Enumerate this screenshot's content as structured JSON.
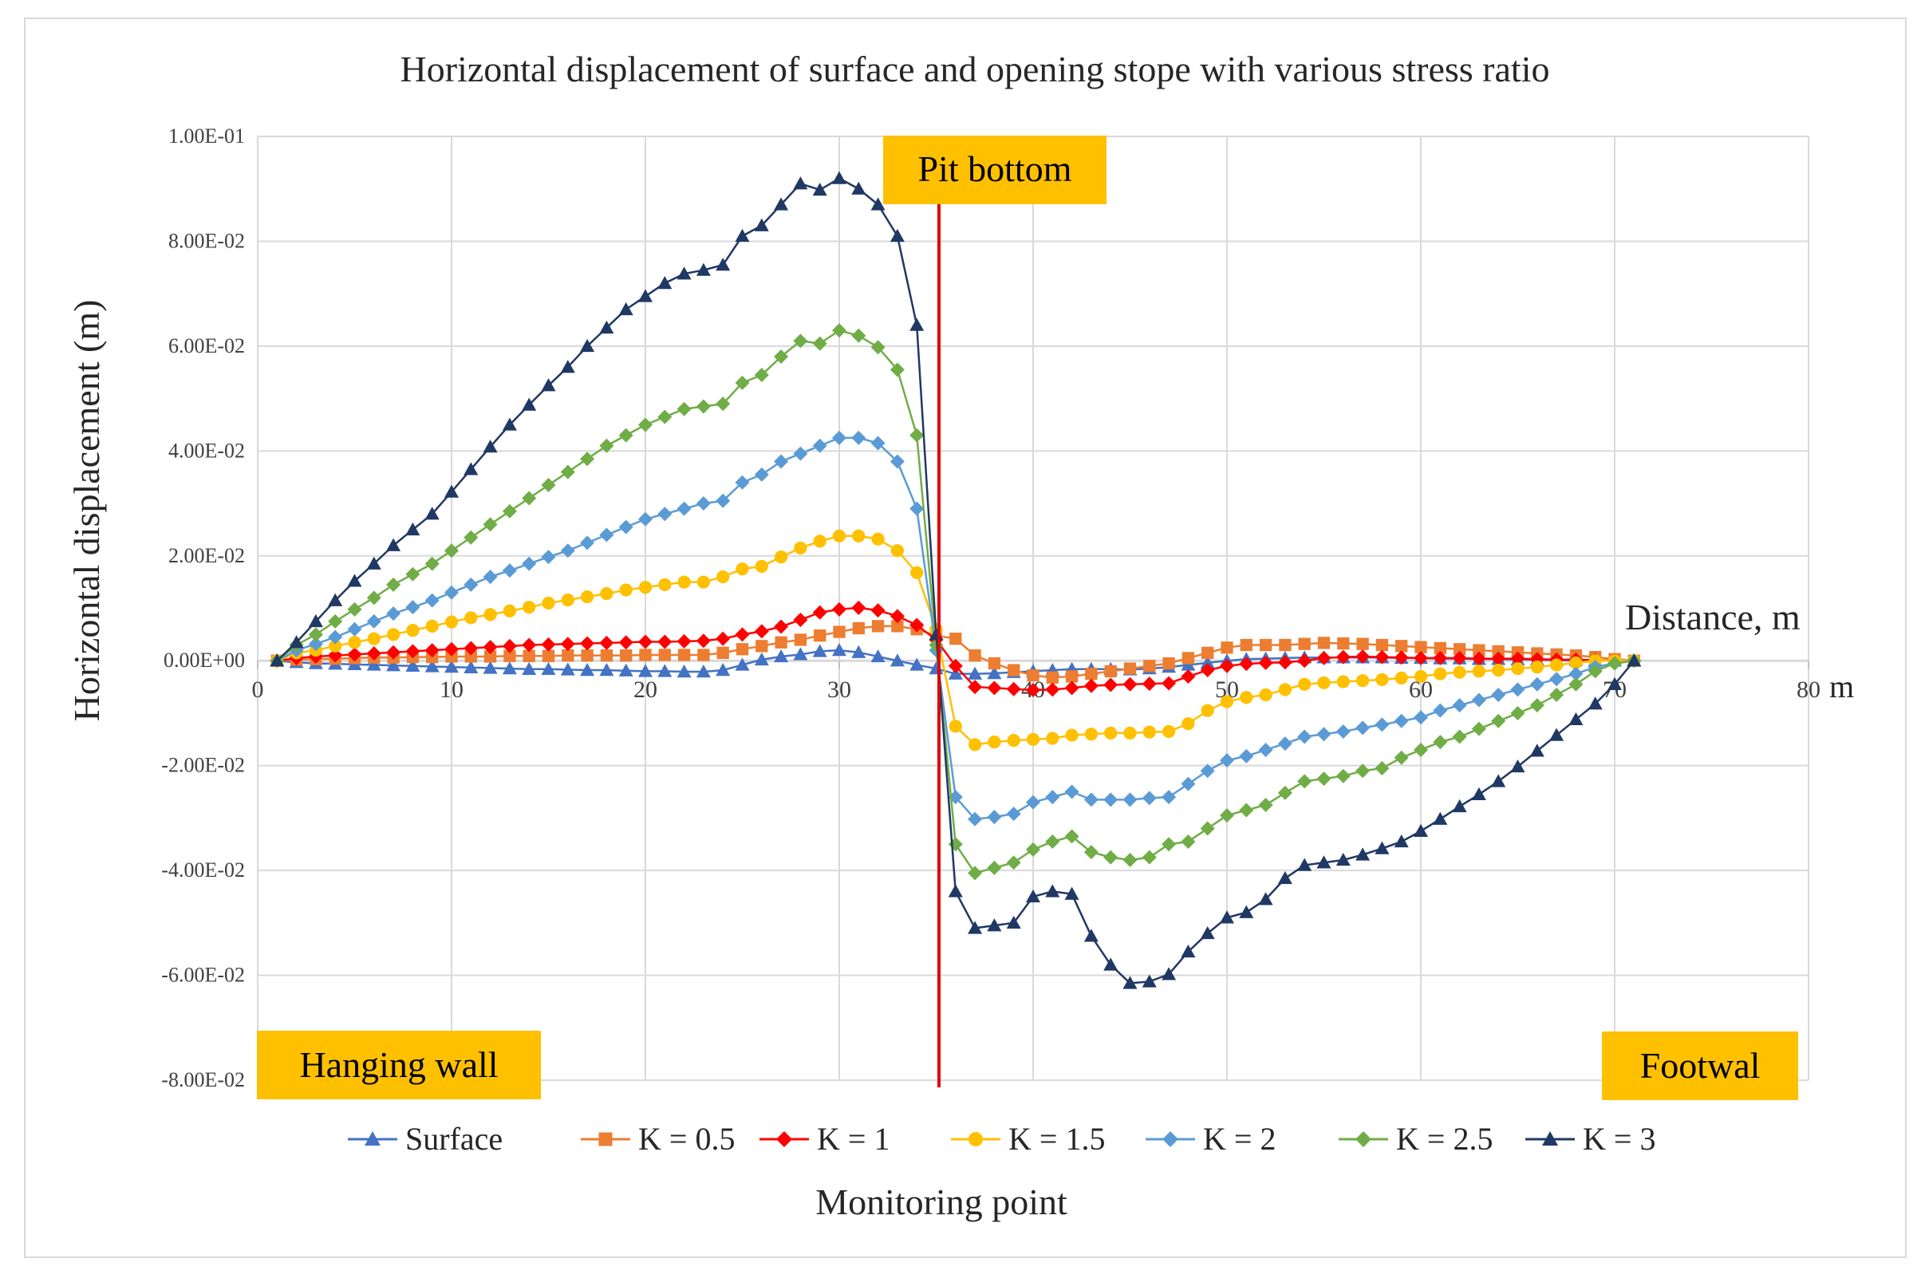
{
  "chart_data": {
    "type": "line",
    "title": "Horizontal displacement of surface and opening stope with various stress ratio",
    "xlabel": "Monitoring point",
    "ylabel": "Horizontal displacement (m)",
    "x_axis_title": "Distance, m",
    "x_unit": "m",
    "xlim": [
      0,
      80
    ],
    "ylim": [
      -0.08,
      0.1
    ],
    "x_ticks": [
      "0",
      "10",
      "20",
      "30",
      "40",
      "50",
      "60",
      "70",
      "80"
    ],
    "y_ticks": [
      "1.00E-01",
      "8.00E-02",
      "6.00E-02",
      "4.00E-02",
      "2.00E-02",
      "0.00E+00",
      "-2.00E-02",
      "-4.00E-02",
      "-6.00E-02",
      "-8.00E-02"
    ],
    "gridlines": true,
    "legend_position": "bottom",
    "pit_bottom_x": 35.5,
    "annotations": {
      "pit_bottom": "Pit bottom",
      "hanging_wall": "Hanging wall",
      "footwall": "Footwal"
    },
    "colors": {
      "grid": "#d9d9d9",
      "pit_line": "#e00000",
      "annotation_box": "#ffc000"
    },
    "x": [
      1,
      2,
      3,
      4,
      5,
      6,
      7,
      8,
      9,
      10,
      11,
      12,
      13,
      14,
      15,
      16,
      17,
      18,
      19,
      20,
      21,
      22,
      23,
      24,
      25,
      26,
      27,
      28,
      29,
      30,
      31,
      32,
      33,
      34,
      35,
      36,
      37,
      38,
      39,
      40,
      41,
      42,
      43,
      44,
      45,
      46,
      47,
      48,
      49,
      50,
      51,
      52,
      53,
      54,
      55,
      56,
      57,
      58,
      59,
      60,
      61,
      62,
      63,
      64,
      65,
      66,
      67,
      68,
      69,
      70,
      71
    ],
    "series": [
      {
        "name": "Surface",
        "color": "#4472c4",
        "marker": "triangle",
        "values": [
          0,
          -0.0003,
          -0.0005,
          -0.0006,
          -0.0007,
          -0.0008,
          -0.0009,
          -0.001,
          -0.0011,
          -0.0012,
          -0.0013,
          -0.0014,
          -0.0015,
          -0.0016,
          -0.0016,
          -0.0017,
          -0.0018,
          -0.0018,
          -0.0019,
          -0.002,
          -0.002,
          -0.0021,
          -0.0021,
          -0.0018,
          -0.0008,
          0.0002,
          0.0008,
          0.0012,
          0.0018,
          0.002,
          0.0016,
          0.0008,
          0,
          -0.0008,
          -0.0015,
          -0.0025,
          -0.0025,
          -0.0024,
          -0.0022,
          -0.002,
          -0.0018,
          -0.0016,
          -0.0016,
          -0.0016,
          -0.0017,
          -0.0015,
          -0.0012,
          -0.0008,
          -0.0004,
          0,
          0.0003,
          0.0004,
          0.0005,
          0.0006,
          0.0006,
          0.0006,
          0.0006,
          0.0006,
          0.0005,
          0.0005,
          0.0004,
          0.0004,
          0.0003,
          0.0003,
          0.0002,
          0.0002,
          0.0001,
          0.0001,
          0,
          0,
          0
        ]
      },
      {
        "name": "K = 0.5",
        "color": "#ed7d31",
        "marker": "square",
        "values": [
          0,
          0.0002,
          0.0003,
          0.0004,
          0.0005,
          0.0006,
          0.0006,
          0.0007,
          0.0007,
          0.0008,
          0.0008,
          0.0008,
          0.0009,
          0.0009,
          0.0009,
          0.001,
          0.001,
          0.001,
          0.001,
          0.0011,
          0.0011,
          0.0011,
          0.0011,
          0.0015,
          0.0022,
          0.0028,
          0.0035,
          0.004,
          0.0048,
          0.0055,
          0.0062,
          0.0066,
          0.0066,
          0.006,
          0.0048,
          0.0042,
          0.001,
          -0.0005,
          -0.0018,
          -0.0028,
          -0.0032,
          -0.003,
          -0.0025,
          -0.002,
          -0.0015,
          -0.001,
          -0.0005,
          0.0005,
          0.0015,
          0.0025,
          0.003,
          0.003,
          0.003,
          0.0032,
          0.0034,
          0.0033,
          0.0032,
          0.003,
          0.0028,
          0.0026,
          0.0024,
          0.0022,
          0.002,
          0.0018,
          0.0016,
          0.0014,
          0.0012,
          0.001,
          0.0007,
          0.0003,
          0
        ]
      },
      {
        "name": "K = 1",
        "color": "#ff0000",
        "marker": "diamond",
        "values": [
          0,
          0.0005,
          0.0008,
          0.001,
          0.0012,
          0.0014,
          0.0016,
          0.0018,
          0.002,
          0.0022,
          0.0024,
          0.0026,
          0.0028,
          0.003,
          0.0031,
          0.0032,
          0.0033,
          0.0034,
          0.0035,
          0.0036,
          0.0036,
          0.0037,
          0.0038,
          0.0042,
          0.005,
          0.0056,
          0.0065,
          0.0078,
          0.0092,
          0.0098,
          0.0101,
          0.0096,
          0.0085,
          0.0068,
          0.004,
          -0.001,
          -0.005,
          -0.0052,
          -0.0054,
          -0.0056,
          -0.0055,
          -0.0052,
          -0.0048,
          -0.0046,
          -0.0045,
          -0.0044,
          -0.0043,
          -0.003,
          -0.0018,
          -0.001,
          -0.0006,
          -0.0004,
          -0.0003,
          0,
          0.0005,
          0.0007,
          0.0008,
          0.0007,
          0.0006,
          0.0005,
          0.0005,
          0.0005,
          0.0004,
          0.0004,
          0.0004,
          0.0003,
          0.0002,
          0.0002,
          0.0001,
          0,
          0
        ]
      },
      {
        "name": "K = 1.5",
        "color": "#ffc000",
        "marker": "circle",
        "values": [
          0,
          0.0015,
          0.002,
          0.0028,
          0.0035,
          0.0042,
          0.005,
          0.0058,
          0.0066,
          0.0074,
          0.0082,
          0.0088,
          0.0095,
          0.0102,
          0.011,
          0.0116,
          0.0122,
          0.0128,
          0.0135,
          0.014,
          0.0145,
          0.015,
          0.015,
          0.016,
          0.0175,
          0.018,
          0.0198,
          0.0215,
          0.0228,
          0.0238,
          0.0238,
          0.0232,
          0.021,
          0.0168,
          0.006,
          -0.0125,
          -0.016,
          -0.0155,
          -0.0152,
          -0.015,
          -0.0148,
          -0.0142,
          -0.014,
          -0.0138,
          -0.0138,
          -0.0136,
          -0.0135,
          -0.012,
          -0.0095,
          -0.0078,
          -0.007,
          -0.0065,
          -0.0055,
          -0.0045,
          -0.0042,
          -0.004,
          -0.0038,
          -0.0036,
          -0.0033,
          -0.003,
          -0.0025,
          -0.0022,
          -0.002,
          -0.0018,
          -0.0015,
          -0.0012,
          -0.0008,
          -0.0004,
          0,
          0,
          0
        ]
      },
      {
        "name": "K = 2",
        "color": "#5b9bd5",
        "marker": "diamond",
        "values": [
          0,
          0.002,
          0.0032,
          0.0045,
          0.006,
          0.0075,
          0.009,
          0.0102,
          0.0115,
          0.013,
          0.0145,
          0.016,
          0.0172,
          0.0185,
          0.0198,
          0.021,
          0.0225,
          0.024,
          0.0255,
          0.027,
          0.028,
          0.029,
          0.03,
          0.0305,
          0.034,
          0.0355,
          0.038,
          0.0395,
          0.041,
          0.0425,
          0.0425,
          0.0415,
          0.038,
          0.029,
          0.002,
          -0.026,
          -0.0302,
          -0.0298,
          -0.0292,
          -0.027,
          -0.026,
          -0.025,
          -0.0265,
          -0.0265,
          -0.0265,
          -0.0262,
          -0.026,
          -0.0235,
          -0.021,
          -0.019,
          -0.0182,
          -0.017,
          -0.0158,
          -0.0145,
          -0.014,
          -0.0135,
          -0.0128,
          -0.0122,
          -0.0115,
          -0.0108,
          -0.0095,
          -0.0085,
          -0.0075,
          -0.0065,
          -0.0055,
          -0.0045,
          -0.0035,
          -0.0025,
          -0.0012,
          -0.0005,
          0
        ]
      },
      {
        "name": "K = 2.5",
        "color": "#70ad47",
        "marker": "diamond",
        "values": [
          0,
          0.003,
          0.005,
          0.0075,
          0.0098,
          0.012,
          0.0145,
          0.0165,
          0.0185,
          0.021,
          0.0235,
          0.026,
          0.0285,
          0.031,
          0.0335,
          0.036,
          0.0385,
          0.041,
          0.043,
          0.045,
          0.0465,
          0.048,
          0.0485,
          0.049,
          0.053,
          0.0545,
          0.058,
          0.061,
          0.0605,
          0.063,
          0.062,
          0.0598,
          0.0555,
          0.043,
          0.003,
          -0.035,
          -0.0405,
          -0.0395,
          -0.0385,
          -0.036,
          -0.0345,
          -0.0335,
          -0.0365,
          -0.0375,
          -0.038,
          -0.0375,
          -0.035,
          -0.0345,
          -0.032,
          -0.0295,
          -0.0285,
          -0.0275,
          -0.0252,
          -0.023,
          -0.0225,
          -0.022,
          -0.021,
          -0.0205,
          -0.0185,
          -0.017,
          -0.0155,
          -0.0145,
          -0.013,
          -0.0115,
          -0.01,
          -0.0085,
          -0.0065,
          -0.0045,
          -0.002,
          -0.0005,
          0
        ]
      },
      {
        "name": "K = 3",
        "color": "#203864",
        "marker": "triangle",
        "values": [
          0,
          0.0035,
          0.0075,
          0.0115,
          0.0152,
          0.0185,
          0.022,
          0.025,
          0.028,
          0.0322,
          0.0365,
          0.0408,
          0.045,
          0.0488,
          0.0525,
          0.056,
          0.06,
          0.0635,
          0.067,
          0.0695,
          0.072,
          0.0738,
          0.0745,
          0.0755,
          0.081,
          0.083,
          0.087,
          0.091,
          0.0898,
          0.092,
          0.09,
          0.087,
          0.081,
          0.064,
          0.005,
          -0.044,
          -0.051,
          -0.0505,
          -0.05,
          -0.045,
          -0.044,
          -0.0445,
          -0.0525,
          -0.058,
          -0.0615,
          -0.0612,
          -0.0598,
          -0.0555,
          -0.052,
          -0.049,
          -0.048,
          -0.0455,
          -0.0415,
          -0.039,
          -0.0385,
          -0.038,
          -0.037,
          -0.0358,
          -0.0345,
          -0.0325,
          -0.0302,
          -0.0278,
          -0.0255,
          -0.023,
          -0.0202,
          -0.0172,
          -0.0142,
          -0.0112,
          -0.0082,
          -0.0045,
          0
        ]
      }
    ]
  }
}
